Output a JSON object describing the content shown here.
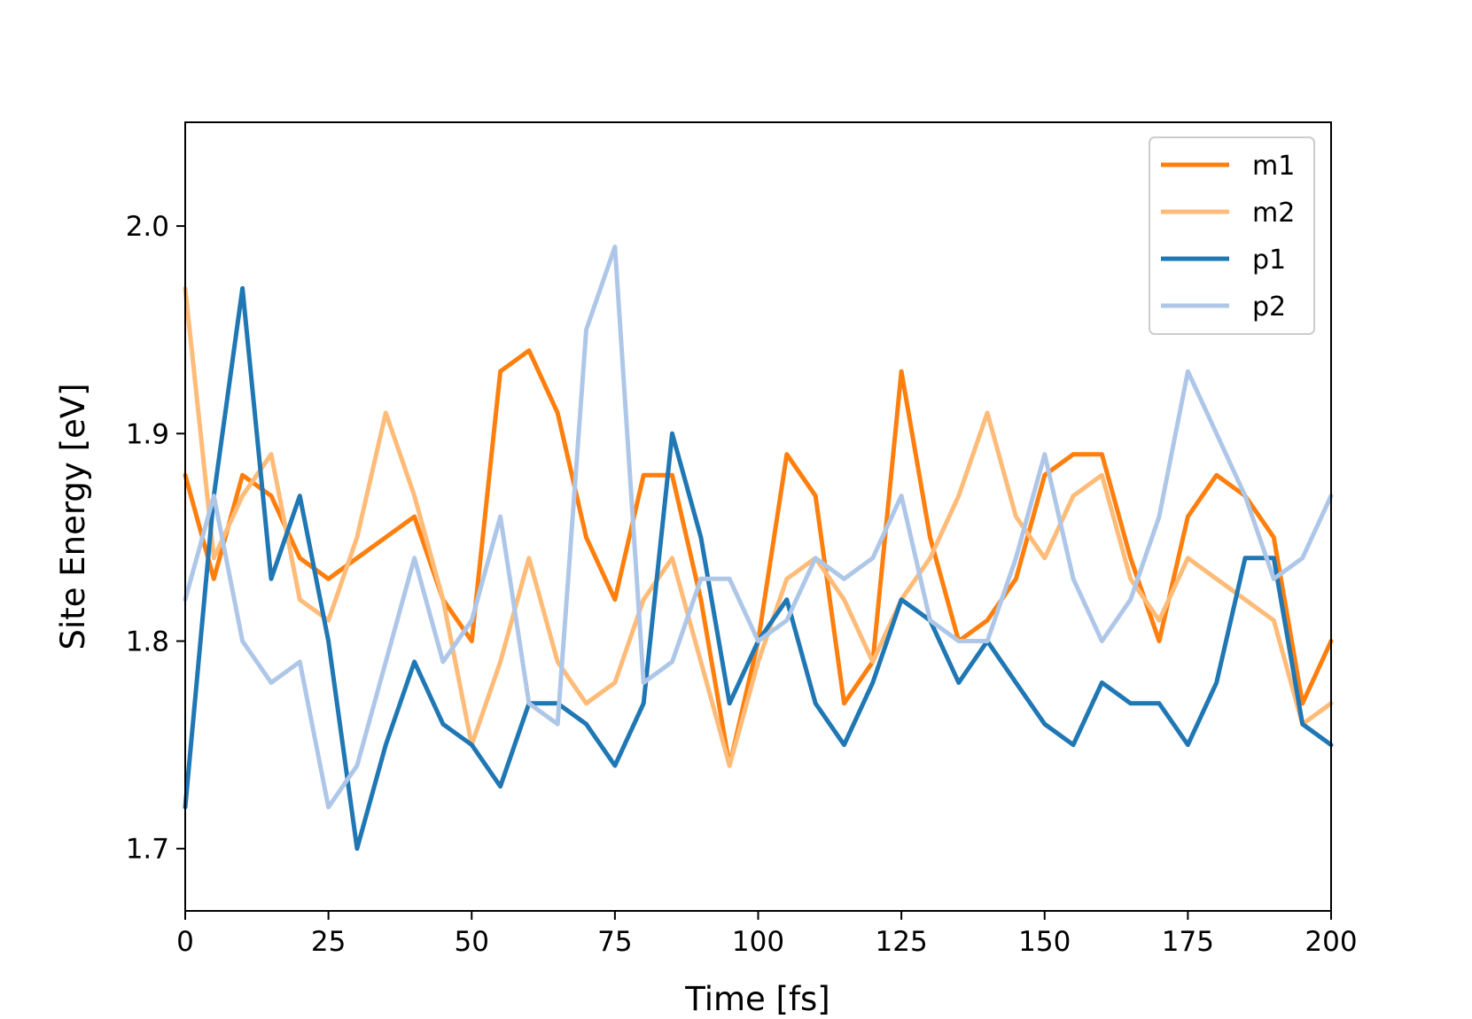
{
  "chart_data": {
    "type": "line",
    "title": "",
    "xlabel": "Time [fs]",
    "ylabel": "Site Energy [eV]",
    "xlim": [
      0,
      200
    ],
    "ylim": [
      1.67,
      2.05
    ],
    "xticks": [
      0,
      25,
      50,
      75,
      100,
      125,
      150,
      175,
      200
    ],
    "yticks": [
      1.7,
      1.8,
      1.9,
      2.0
    ],
    "ytick_labels": [
      "1.7",
      "1.8",
      "1.9",
      "2.0"
    ],
    "grid": false,
    "legend_position": "top-right",
    "x": [
      0,
      5,
      10,
      15,
      20,
      25,
      30,
      35,
      40,
      45,
      50,
      55,
      60,
      65,
      70,
      75,
      80,
      85,
      90,
      95,
      100,
      105,
      110,
      115,
      120,
      125,
      130,
      135,
      140,
      145,
      150,
      155,
      160,
      165,
      170,
      175,
      180,
      185,
      190,
      195,
      200
    ],
    "series": [
      {
        "name": "m1",
        "color": "#ff7f0e",
        "values": [
          1.88,
          1.83,
          1.88,
          1.87,
          1.84,
          1.83,
          1.84,
          1.85,
          1.86,
          1.82,
          1.8,
          1.93,
          1.94,
          1.91,
          1.85,
          1.82,
          1.88,
          1.88,
          1.82,
          1.74,
          1.8,
          1.89,
          1.87,
          1.77,
          1.79,
          1.93,
          1.85,
          1.8,
          1.81,
          1.83,
          1.88,
          1.89,
          1.89,
          1.84,
          1.8,
          1.86,
          1.88,
          1.87,
          1.85,
          1.77,
          1.8
        ]
      },
      {
        "name": "m2",
        "color": "#ffbb78",
        "values": [
          1.97,
          1.84,
          1.87,
          1.89,
          1.82,
          1.81,
          1.85,
          1.91,
          1.87,
          1.82,
          1.75,
          1.79,
          1.84,
          1.79,
          1.77,
          1.78,
          1.82,
          1.84,
          1.79,
          1.74,
          1.79,
          1.83,
          1.84,
          1.82,
          1.79,
          1.82,
          1.84,
          1.87,
          1.91,
          1.86,
          1.84,
          1.87,
          1.88,
          1.83,
          1.81,
          1.84,
          1.83,
          1.82,
          1.81,
          1.76,
          1.77
        ]
      },
      {
        "name": "p1",
        "color": "#1f77b4",
        "values": [
          1.72,
          1.87,
          1.97,
          1.83,
          1.87,
          1.8,
          1.7,
          1.75,
          1.79,
          1.76,
          1.75,
          1.73,
          1.77,
          1.77,
          1.76,
          1.74,
          1.77,
          1.9,
          1.85,
          1.77,
          1.8,
          1.82,
          1.77,
          1.75,
          1.78,
          1.82,
          1.81,
          1.78,
          1.8,
          1.78,
          1.76,
          1.75,
          1.78,
          1.77,
          1.77,
          1.75,
          1.78,
          1.84,
          1.84,
          1.76,
          1.75
        ]
      },
      {
        "name": "p2",
        "color": "#aec7e8",
        "values": [
          1.82,
          1.87,
          1.8,
          1.78,
          1.79,
          1.72,
          1.74,
          1.79,
          1.84,
          1.79,
          1.81,
          1.86,
          1.77,
          1.76,
          1.95,
          1.99,
          1.78,
          1.79,
          1.83,
          1.83,
          1.8,
          1.81,
          1.84,
          1.83,
          1.84,
          1.87,
          1.81,
          1.8,
          1.8,
          1.84,
          1.89,
          1.83,
          1.8,
          1.82,
          1.86,
          1.93,
          1.9,
          1.87,
          1.83,
          1.84,
          1.87
        ]
      }
    ]
  }
}
